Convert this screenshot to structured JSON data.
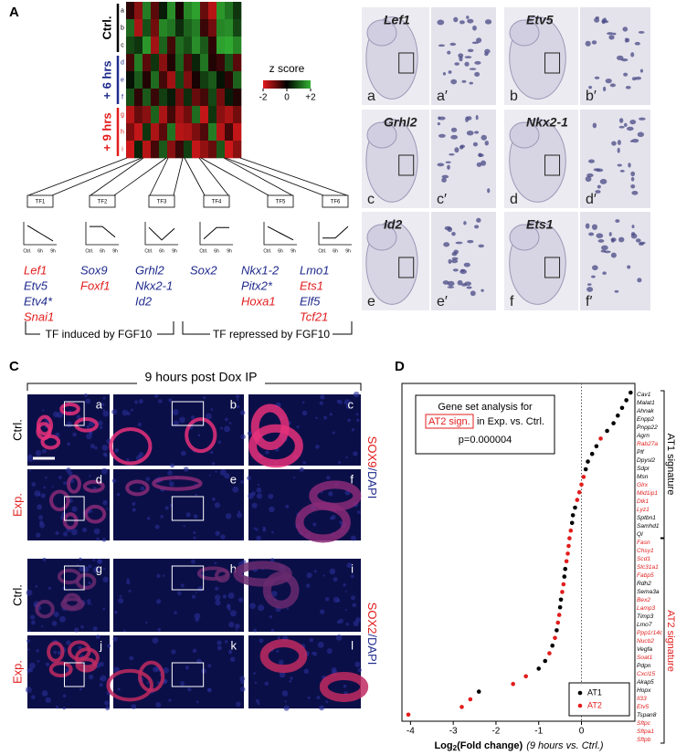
{
  "panel_a": {
    "letter": "A",
    "groups": [
      {
        "label": "Ctrl.",
        "color": "#000000",
        "rows": [
          "a",
          "b",
          "c"
        ]
      },
      {
        "label": "+ 6 hrs",
        "color": "#1f2a8c",
        "rows": [
          "d",
          "e",
          "f"
        ]
      },
      {
        "label": "+ 9 hrs",
        "color": "#e21c1c",
        "rows": [
          "g",
          "h",
          "i"
        ]
      }
    ],
    "heatmap": {
      "values": [
        [
          -0.4,
          -1.2,
          1.4,
          -0.8,
          0.3,
          1.6,
          -0.2,
          1.5,
          1.8,
          -0.9,
          -1.6,
          1.7,
          1.3,
          0.6
        ],
        [
          1.2,
          -1.5,
          0.9,
          -1.0,
          1.5,
          1.3,
          0.5,
          1.1,
          1.4,
          -0.5,
          -1.0,
          1.5,
          1.6,
          0.8
        ],
        [
          0.8,
          0.6,
          1.7,
          -1.4,
          1.1,
          -0.6,
          1.2,
          0.9,
          1.6,
          1.0,
          -0.4,
          1.8,
          1.9,
          1.5
        ],
        [
          -0.6,
          1.4,
          -0.8,
          0.6,
          -1.2,
          -0.3,
          1.1,
          -0.7,
          0.4,
          1.3,
          -0.3,
          -0.5,
          0.9,
          -0.8
        ],
        [
          0.2,
          1.0,
          -0.3,
          1.2,
          -0.6,
          -1.4,
          0.8,
          -1.1,
          -0.2,
          0.7,
          1.0,
          0.2,
          -0.4,
          1.1
        ],
        [
          0.9,
          -0.4,
          1.0,
          -0.5,
          0.7,
          0.3,
          -1.0,
          0.5,
          -0.9,
          -0.6,
          0.8,
          -1.0,
          0.3,
          -0.3
        ],
        [
          -1.6,
          -0.9,
          -1.2,
          1.1,
          -1.5,
          -0.6,
          -1.4,
          -1.0,
          1.2,
          -1.7,
          0.6,
          -1.2,
          -1.5,
          -1.0
        ],
        [
          -1.1,
          -1.7,
          0.6,
          -1.5,
          -0.8,
          1.3,
          -1.6,
          -1.5,
          -1.1,
          -0.7,
          1.4,
          -1.6,
          -0.6,
          -1.7
        ],
        [
          -1.8,
          0.4,
          -1.6,
          -0.6,
          1.0,
          -1.2,
          -0.5,
          0.7,
          -1.7,
          -1.3,
          -0.9,
          1.0,
          -1.8,
          -1.2
        ]
      ]
    },
    "colorbar": {
      "title": "z score",
      "lim": [
        -2,
        2
      ],
      "low_color": "#e41a1c",
      "mid_color": "#000000",
      "high_color": "#33b233",
      "ticks": [
        -2,
        0,
        {
          "value": 2,
          "label": "+2"
        }
      ]
    },
    "tf_boxes": [
      "TF1",
      "TF2",
      "TF3",
      "TF4",
      "TF5",
      "TF6"
    ],
    "trend_labels": [
      "Ctrl.",
      "6h",
      "9h"
    ],
    "gene_lists": [
      [
        {
          "name": "Lef1",
          "color": "#e21c1c"
        },
        {
          "name": "Etv5",
          "color": "#1f2a8c"
        },
        {
          "name": "Etv4*",
          "color": "#1f2a8c"
        },
        {
          "name": "Snai1",
          "color": "#e21c1c"
        }
      ],
      [
        {
          "name": "Sox9",
          "color": "#1f2a8c"
        },
        {
          "name": "Foxf1",
          "color": "#e21c1c"
        }
      ],
      [
        {
          "name": "Grhl2",
          "color": "#1f2a8c"
        },
        {
          "name": "Nkx2-1",
          "color": "#1f2a8c"
        },
        {
          "name": "Id2",
          "color": "#1f2a8c"
        }
      ],
      [
        {
          "name": "Sox2",
          "color": "#1f2a8c"
        }
      ],
      [
        {
          "name": "Nkx1-2",
          "color": "#1f2a8c"
        },
        {
          "name": "Pitx2*",
          "color": "#1f2a8c"
        },
        {
          "name": "Hoxa1",
          "color": "#e21c1c"
        }
      ],
      [
        {
          "name": "Lmo1",
          "color": "#1f2a8c"
        },
        {
          "name": "Ets1",
          "color": "#e21c1c"
        },
        {
          "name": "Elf5",
          "color": "#1f2a8c"
        },
        {
          "name": "Tcf21",
          "color": "#e21c1c"
        }
      ]
    ],
    "brackets": [
      "TF induced by FGF10",
      "TF repressed by FGF10"
    ]
  },
  "panel_b": {
    "letter": "B",
    "genes": [
      "Lef1",
      "Etv5",
      "Grhl2",
      "Nkx2-1",
      "Id2",
      "Ets1"
    ],
    "labels": [
      "a",
      "a′",
      "b",
      "b′",
      "c",
      "c′",
      "d",
      "d′",
      "e",
      "e′",
      "f",
      "f′"
    ]
  },
  "panel_c": {
    "letter": "C",
    "title": "9 hours post Dox IP",
    "row_labels": [
      {
        "text": "Ctrl.",
        "color": "#000000"
      },
      {
        "text": "Exp.",
        "color": "#e21c1c"
      },
      {
        "text": "Ctrl.",
        "color": "#000000"
      },
      {
        "text": "Exp.",
        "color": "#e21c1c"
      }
    ],
    "labels": [
      "a",
      "b",
      "c",
      "d",
      "e",
      "f",
      "g",
      "h",
      "i",
      "j",
      "k",
      "l"
    ],
    "stains": [
      {
        "marker": "SOX9",
        "counter": "/DAPI"
      },
      {
        "marker": "SOX2",
        "counter": "/DAPI"
      }
    ]
  },
  "panel_d": {
    "letter": "D"
  },
  "chart_data": {
    "type": "dot",
    "categories": [
      "Cav1",
      "Malat1",
      "Ahnak",
      "Enpp2",
      "Pnpp22",
      "Agrn",
      "Rab27a",
      "Plf",
      "Dpysl2",
      "Sdpr",
      "Msn",
      "Glrx",
      "Mid1ip1",
      "Dlk1",
      "Lyz1",
      "Sptbn1",
      "Samhd1",
      "Ql",
      "Fasn",
      "Chsy1",
      "Scd1",
      "Slc31a1",
      "Fabp5",
      "Rdh2",
      "Sema3a",
      "Bex2",
      "Lamp3",
      "Timp3",
      "Lmo7",
      "Ppp1r14c",
      "Nucb2",
      "Vegfa",
      "Soat1",
      "Pdpn",
      "Cxcl15",
      "Akap5",
      "Hopx",
      "Il33",
      "Etv5",
      "Tspan8",
      "Sftpc",
      "Sftpa1",
      "Sftpb"
    ],
    "series": [
      {
        "name": "AT1",
        "color": "#000000",
        "values": [
          1.15,
          1.05,
          0.95,
          0.85,
          0.75,
          0.6,
          null,
          0.35,
          0.25,
          0.15,
          0.1,
          null,
          null,
          null,
          null,
          -0.15,
          -0.2,
          -0.22,
          null,
          null,
          null,
          null,
          null,
          -0.38,
          -0.4,
          null,
          null,
          -0.48,
          -0.5,
          null,
          null,
          -0.58,
          null,
          -0.68,
          null,
          -0.85,
          -1.0,
          null,
          null,
          -2.4,
          null,
          null,
          null
        ]
      },
      {
        "name": "AT2",
        "color": "#e21c1c",
        "values": [
          null,
          null,
          null,
          null,
          null,
          null,
          0.45,
          null,
          null,
          null,
          null,
          0.05,
          0,
          -0.05,
          -0.1,
          null,
          null,
          null,
          -0.25,
          -0.28,
          -0.3,
          -0.32,
          -0.35,
          null,
          null,
          -0.42,
          -0.45,
          null,
          null,
          -0.52,
          -0.55,
          null,
          -0.62,
          null,
          -0.75,
          null,
          null,
          -1.3,
          -1.6,
          null,
          -2.6,
          -2.8,
          -4.05
        ]
      }
    ],
    "xlim": [
      -4.2,
      1.25
    ],
    "xticks": [
      -4,
      -3,
      -2,
      -1,
      0
    ],
    "xlabel": {
      "main": "Log",
      "sub": "2",
      "rest": "(Fold change)",
      "note": "(9 hours vs. Ctrl.)"
    },
    "annotation": [
      "Gene set analysis for",
      "AT2 sign.",
      "in Exp. vs. Ctrl.",
      "p=0.000004"
    ],
    "bracket_labels": [
      "AT1 signature",
      "AT2 signature"
    ],
    "legend": "bottom-right"
  }
}
